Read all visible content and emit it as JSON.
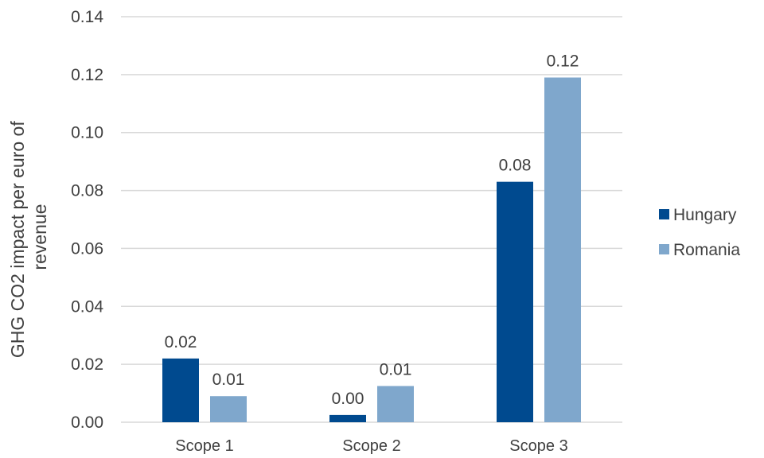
{
  "chart_data": {
    "type": "bar",
    "categories": [
      "Scope 1",
      "Scope 2",
      "Scope 3"
    ],
    "series": [
      {
        "name": "Hungary",
        "values": [
          0.022,
          0.0025,
          0.083
        ],
        "labels": [
          "0.02",
          "0.00",
          "0.08"
        ],
        "color": "#004a8f"
      },
      {
        "name": "Romania",
        "values": [
          0.009,
          0.0125,
          0.119
        ],
        "labels": [
          "0.01",
          "0.01",
          "0.12"
        ],
        "color": "#7fa7cc"
      }
    ],
    "ylabel_lines": [
      "GHG CO2 impact per euro of",
      "revenue"
    ],
    "xlabel": "",
    "ylim": [
      0,
      0.14
    ],
    "yticks": [
      "0.00",
      "0.02",
      "0.04",
      "0.06",
      "0.08",
      "0.10",
      "0.12",
      "0.14"
    ],
    "grid": true,
    "legend_position": "right"
  }
}
